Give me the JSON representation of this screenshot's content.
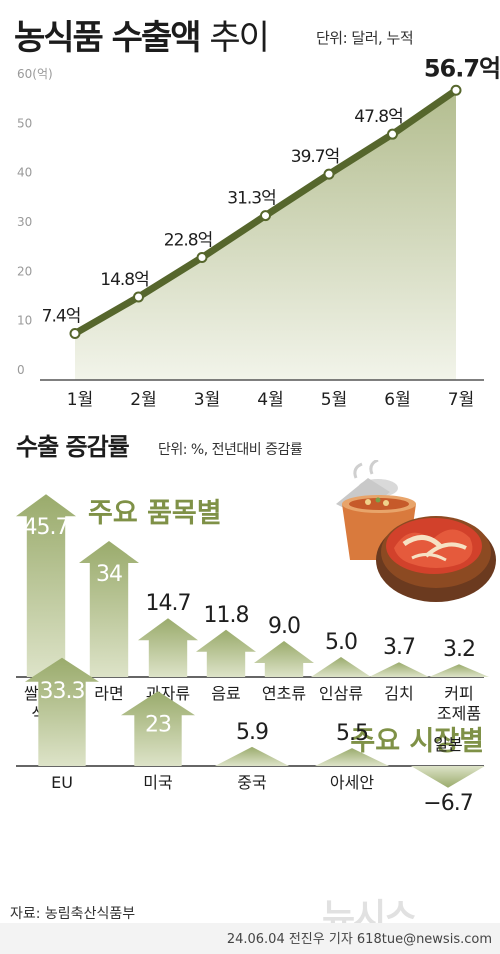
{
  "header": {
    "title_bold": "농식품 수출액",
    "title_light": "추이",
    "unit": "단위: 달러, 누적"
  },
  "section2": {
    "title": "수출 증감률",
    "unit": "단위: %, 전년대비 증감률",
    "group_items_title": "주요 품목별",
    "group_markets_title": "주요 시장별"
  },
  "footer": {
    "source": "자료: 농림축산식품부",
    "credit": "24.06.04 전진우 기자 618tue@newsis.com",
    "watermark": "뉴시스"
  },
  "colors": {
    "line": "#56662c",
    "area_top": "#b3bd8f",
    "area_bottom": "#f2f4ea",
    "arrow_top": "#9aab6c",
    "arrow_bottom": "#dde3c8",
    "section_title": "#7f9147"
  },
  "chart_data": [
    {
      "type": "area",
      "title": "농식품 수출액 추이",
      "unit": "단위: 달러, 누적",
      "categories": [
        "1월",
        "2월",
        "3월",
        "4월",
        "5월",
        "6월",
        "7월"
      ],
      "values": [
        7.4,
        14.8,
        22.8,
        31.3,
        39.7,
        47.8,
        56.7
      ],
      "value_labels": [
        "7.4억",
        "14.8억",
        "22.8억",
        "31.3억",
        "39.7억",
        "47.8억",
        "56.7억"
      ],
      "y_ticks": [
        "0",
        "10",
        "20",
        "30",
        "40",
        "50",
        "60(억)"
      ],
      "ylim": [
        0,
        60
      ],
      "grid": false,
      "legend": "none"
    },
    {
      "type": "bar",
      "title": "주요 품목별",
      "categories": [
        "쌀가공\n식품",
        "라면",
        "과자류",
        "음료",
        "연초류",
        "인삼류",
        "김치",
        "커피\n조제품"
      ],
      "values": [
        45.7,
        34,
        14.7,
        11.8,
        9.0,
        5.0,
        3.7,
        3.2
      ],
      "value_labels": [
        "45.7",
        "34",
        "14.7",
        "11.8",
        "9.0",
        "5.0",
        "3.7",
        "3.2"
      ]
    },
    {
      "type": "bar",
      "title": "주요 시장별",
      "categories": [
        "EU",
        "미국",
        "중국",
        "아세안",
        "일본"
      ],
      "values": [
        33.3,
        23,
        5.9,
        5.5,
        -6.7
      ],
      "value_labels": [
        "33.3",
        "23",
        "5.9",
        "5.5",
        "−6.7"
      ]
    }
  ]
}
